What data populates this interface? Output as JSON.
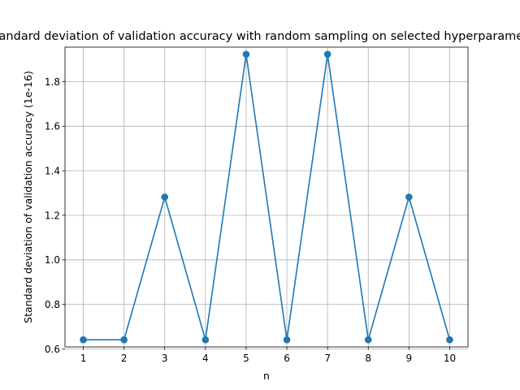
{
  "chart_data": {
    "type": "line",
    "title": "Standard deviation of validation accuracy with random sampling on selected hyperparameters",
    "xlabel": "n",
    "ylabel": "Standard deviation of validation accuracy (1e-16)",
    "x": [
      1,
      2,
      3,
      4,
      5,
      6,
      7,
      8,
      9,
      10
    ],
    "series": [
      {
        "values": [
          0.641,
          0.641,
          1.282,
          0.641,
          1.923,
          0.641,
          1.923,
          0.641,
          1.282,
          0.641
        ]
      }
    ],
    "xlim": [
      0.55,
      10.45
    ],
    "ylim": [
      0.609,
      1.955
    ],
    "xticks": [
      "1",
      "2",
      "3",
      "4",
      "5",
      "6",
      "7",
      "8",
      "9",
      "10"
    ],
    "yticks": [
      0.6,
      0.8,
      1.0,
      1.2,
      1.4,
      1.6,
      1.8
    ],
    "ytick_labels": [
      "0.6",
      "0.8",
      "1.0",
      "1.2",
      "1.4",
      "1.6",
      "1.8"
    ],
    "grid": true,
    "marker": "circle",
    "color": "#1f77b4"
  }
}
